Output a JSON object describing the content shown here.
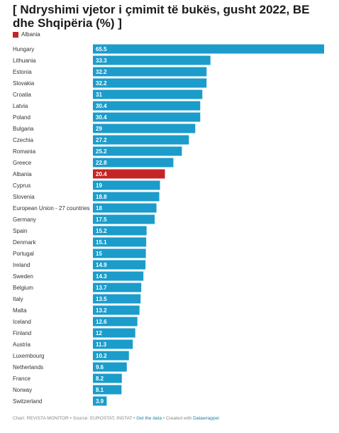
{
  "title": "[ Ndryshimi vjetor i çmimit të bukës, gusht 2022, BE dhe Shqipëria (%) ]",
  "legend": {
    "label": "Albania",
    "color": "#c62525"
  },
  "colors": {
    "default_bar": "#1b9ccb",
    "highlight_bar": "#c62525"
  },
  "chart_data": {
    "type": "bar",
    "orientation": "horizontal",
    "title": "[ Ndryshimi vjetor i çmimit të bukës, gusht 2022, BE dhe Shqipëria (%) ]",
    "categories": [
      "Hungary",
      "Lithuania",
      "Estonia",
      "Slovakia",
      "Croatia",
      "Latvia",
      "Poland",
      "Bulgaria",
      "Czechia",
      "Romania",
      "Greece",
      "Albania",
      "Cyprus",
      "Slovenia",
      "European Union - 27 countries",
      "Germany",
      "Spain",
      "Denmark",
      "Portugal",
      "Ireland",
      "Sweden",
      "Belgium",
      "Italy",
      "Malta",
      "Iceland",
      "Finland",
      "Austria",
      "Luxembourg",
      "Netherlands",
      "France",
      "Norway",
      "Switzerland"
    ],
    "values": [
      65.5,
      33.3,
      32.2,
      32.2,
      31,
      30.4,
      30.4,
      29,
      27.2,
      25.2,
      22.8,
      20.4,
      19,
      18.8,
      18,
      17.5,
      15.2,
      15.1,
      15,
      14.9,
      14.3,
      13.7,
      13.5,
      13.2,
      12.6,
      12,
      11.3,
      10.2,
      9.6,
      8.2,
      8.1,
      3.9
    ],
    "value_labels": [
      "65.5",
      "33.3",
      "32.2",
      "32.2",
      "31",
      "30.4",
      "30.4",
      "29",
      "27.2",
      "25.2",
      "22.8",
      "20.4",
      "19",
      "18.8",
      "18",
      "17.5",
      "15.2",
      "15.1",
      "15",
      "14.9",
      "14.3",
      "13.7",
      "13.5",
      "13.2",
      "12.6",
      "12",
      "11.3",
      "10.2",
      "9.6",
      "8.2",
      "8.1",
      "3.9"
    ],
    "highlight": "Albania",
    "xlim": [
      0,
      65.5
    ],
    "grid": false
  },
  "footer": {
    "prefix": "Chart: REVISTA MONITOR • Source: EUROSTAT, INSTAT • ",
    "get_data": "Get the data",
    "middle": " • Created with ",
    "datawrapper": "Datawrapper"
  }
}
